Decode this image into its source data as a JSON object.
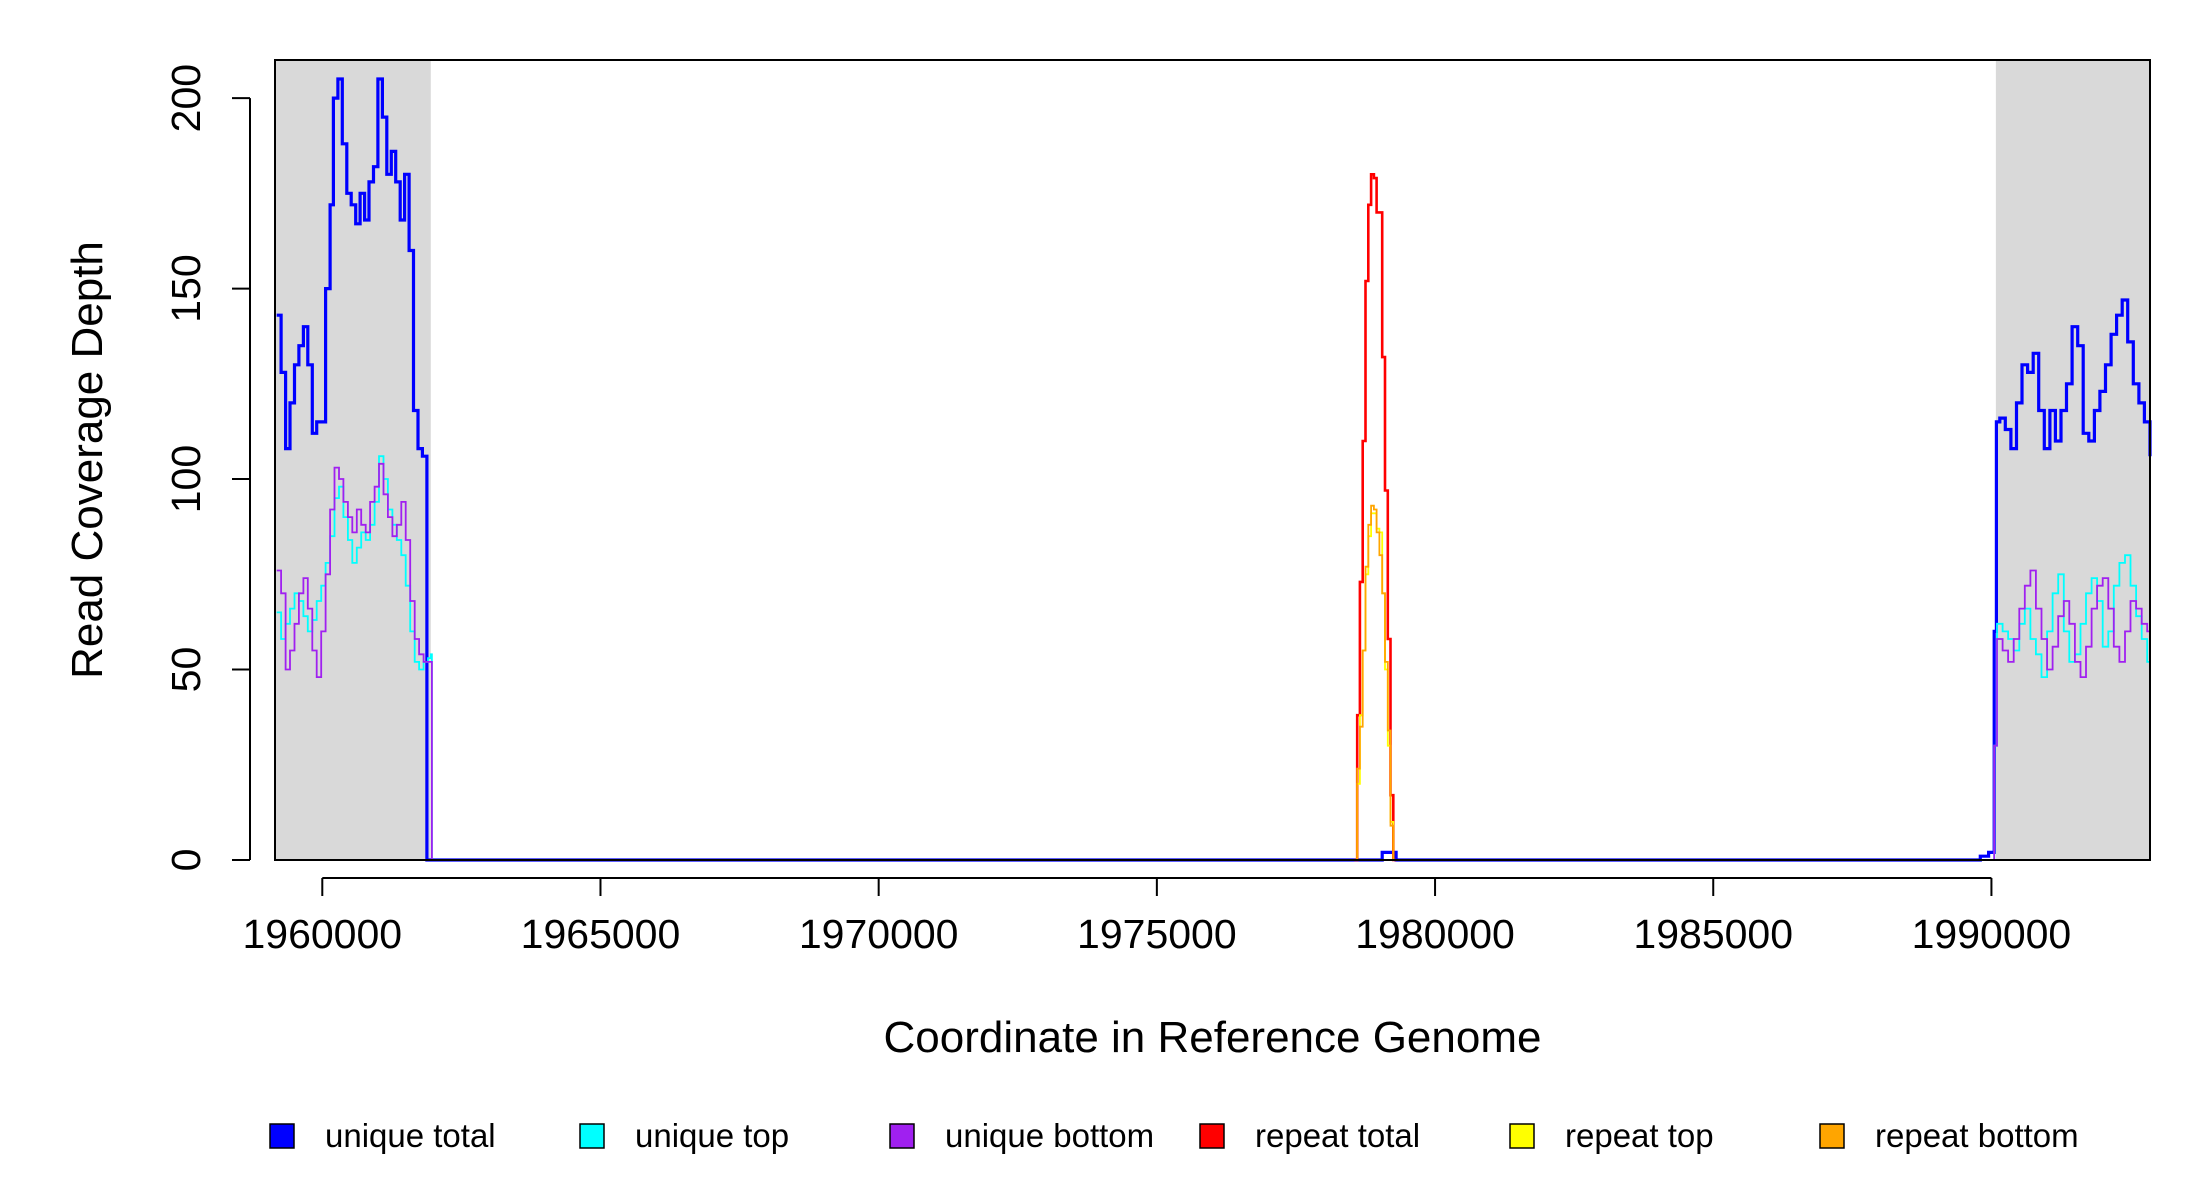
{
  "chart_data": {
    "type": "line",
    "xlabel": "Coordinate in Reference Genome",
    "ylabel": "Read Coverage Depth",
    "xlim": [
      1959150,
      1992850
    ],
    "ylim": [
      0,
      210
    ],
    "x_ticks": [
      {
        "value": 1960000,
        "label": "1960000"
      },
      {
        "value": 1965000,
        "label": "1965000"
      },
      {
        "value": 1970000,
        "label": "1970000"
      },
      {
        "value": 1975000,
        "label": "1975000"
      },
      {
        "value": 1980000,
        "label": "1980000"
      },
      {
        "value": 1985000,
        "label": "1985000"
      },
      {
        "value": 1990000,
        "label": "1990000"
      }
    ],
    "y_ticks": [
      {
        "value": 0,
        "label": "0"
      },
      {
        "value": 50,
        "label": "50"
      },
      {
        "value": 100,
        "label": "100"
      },
      {
        "value": 150,
        "label": "150"
      },
      {
        "value": 200,
        "label": "200"
      }
    ],
    "shaded_regions": [
      {
        "x": [
          1959150,
          1961950
        ],
        "color": "#d9d9d9"
      },
      {
        "x": [
          1990080,
          1992850
        ],
        "color": "#d9d9d9"
      }
    ],
    "grid": false,
    "legend_position": "bottom",
    "series": [
      {
        "name": "unique total",
        "color": "#0000ff",
        "x": [
          1959180,
          1959260,
          1959340,
          1959420,
          1959500,
          1959580,
          1959660,
          1959740,
          1959820,
          1959900,
          1959980,
          1960060,
          1960140,
          1960200,
          1960280,
          1960360,
          1960440,
          1960520,
          1960600,
          1960680,
          1960760,
          1960840,
          1960920,
          1961000,
          1961080,
          1961160,
          1961240,
          1961320,
          1961400,
          1961480,
          1961560,
          1961640,
          1961720,
          1961800,
          1961880,
          1961950,
          1961970,
          1979000,
          1979050,
          1979200,
          1979300,
          1989700,
          1989800,
          1989950,
          1990050,
          1990090,
          1990150,
          1990250,
          1990350,
          1990450,
          1990550,
          1990650,
          1990750,
          1990850,
          1990950,
          1991050,
          1991150,
          1991250,
          1991350,
          1991450,
          1991550,
          1991650,
          1991750,
          1991850,
          1991950,
          1992050,
          1992150,
          1992250,
          1992350,
          1992450,
          1992550,
          1992650,
          1992750,
          1992850
        ],
        "y": [
          143,
          128,
          108,
          120,
          130,
          135,
          140,
          130,
          112,
          115,
          115,
          150,
          172,
          200,
          205,
          188,
          175,
          172,
          167,
          175,
          168,
          178,
          182,
          205,
          195,
          180,
          186,
          178,
          168,
          180,
          160,
          118,
          108,
          106,
          0,
          0,
          0,
          0,
          2,
          2,
          0,
          0,
          1,
          2,
          60,
          115,
          116,
          113,
          108,
          120,
          130,
          128,
          133,
          118,
          108,
          118,
          110,
          118,
          125,
          140,
          135,
          112,
          110,
          118,
          123,
          130,
          138,
          143,
          147,
          136,
          125,
          120,
          115,
          106
        ]
      },
      {
        "name": "unique top",
        "color": "#00ffff",
        "x": [
          1959180,
          1959260,
          1959340,
          1959420,
          1959500,
          1959580,
          1959660,
          1959740,
          1959820,
          1959900,
          1959980,
          1960060,
          1960140,
          1960220,
          1960300,
          1960380,
          1960460,
          1960540,
          1960620,
          1960700,
          1960780,
          1960860,
          1960940,
          1961020,
          1961100,
          1961180,
          1961260,
          1961340,
          1961420,
          1961500,
          1961580,
          1961660,
          1961740,
          1961820,
          1961900,
          1961950,
          1961970,
          1989950,
          1990050,
          1990100,
          1990200,
          1990300,
          1990400,
          1990500,
          1990600,
          1990700,
          1990800,
          1990900,
          1991000,
          1991100,
          1991200,
          1991300,
          1991400,
          1991500,
          1991600,
          1991700,
          1991800,
          1991900,
          1992000,
          1992100,
          1992200,
          1992300,
          1992400,
          1992500,
          1992600,
          1992700,
          1992800,
          1992850
        ],
        "y": [
          65,
          58,
          62,
          66,
          70,
          68,
          64,
          60,
          63,
          68,
          72,
          78,
          85,
          95,
          98,
          90,
          84,
          78,
          82,
          86,
          84,
          88,
          94,
          106,
          100,
          92,
          88,
          84,
          80,
          72,
          60,
          52,
          50,
          52,
          53,
          54,
          0,
          0,
          30,
          62,
          60,
          58,
          55,
          62,
          66,
          58,
          54,
          48,
          60,
          70,
          75,
          60,
          52,
          54,
          62,
          70,
          74,
          68,
          56,
          60,
          72,
          78,
          80,
          72,
          64,
          58,
          52,
          50
        ]
      },
      {
        "name": "unique bottom",
        "color": "#a020f0",
        "x": [
          1959180,
          1959260,
          1959340,
          1959420,
          1959500,
          1959580,
          1959660,
          1959740,
          1959820,
          1959900,
          1959980,
          1960060,
          1960140,
          1960220,
          1960300,
          1960380,
          1960460,
          1960540,
          1960620,
          1960700,
          1960780,
          1960860,
          1960940,
          1961020,
          1961100,
          1961180,
          1961260,
          1961340,
          1961420,
          1961500,
          1961580,
          1961660,
          1961740,
          1961820,
          1961900,
          1961950,
          1961970,
          1989950,
          1990050,
          1990100,
          1990200,
          1990300,
          1990400,
          1990500,
          1990600,
          1990700,
          1990800,
          1990900,
          1991000,
          1991100,
          1991200,
          1991300,
          1991400,
          1991500,
          1991600,
          1991700,
          1991800,
          1991900,
          1992000,
          1992100,
          1992200,
          1992300,
          1992400,
          1992500,
          1992600,
          1992700,
          1992800,
          1992850
        ],
        "y": [
          76,
          70,
          50,
          55,
          62,
          70,
          74,
          66,
          55,
          48,
          60,
          75,
          92,
          103,
          100,
          94,
          90,
          86,
          92,
          88,
          86,
          94,
          98,
          104,
          96,
          90,
          85,
          88,
          94,
          84,
          68,
          58,
          54,
          52,
          52,
          52,
          0,
          0,
          30,
          58,
          55,
          52,
          58,
          66,
          72,
          76,
          66,
          58,
          50,
          56,
          64,
          68,
          62,
          52,
          48,
          56,
          66,
          72,
          74,
          66,
          56,
          52,
          60,
          68,
          66,
          62,
          60,
          58
        ]
      },
      {
        "name": "repeat total",
        "color": "#ff0000",
        "x": [
          1978550,
          1978600,
          1978650,
          1978700,
          1978750,
          1978800,
          1978850,
          1978900,
          1978950,
          1979000,
          1979050,
          1979100,
          1979150,
          1979200,
          1979250,
          1979300
        ],
        "y": [
          0,
          38,
          73,
          110,
          152,
          172,
          180,
          179,
          170,
          170,
          132,
          97,
          58,
          17,
          0,
          0
        ]
      },
      {
        "name": "repeat top",
        "color": "#ffff00",
        "x": [
          1978550,
          1978600,
          1978650,
          1978700,
          1978750,
          1978800,
          1978850,
          1978900,
          1978950,
          1979000,
          1979050,
          1979100,
          1979150,
          1979200,
          1979250,
          1979300
        ],
        "y": [
          0,
          20,
          38,
          55,
          75,
          85,
          91,
          91,
          87,
          86,
          70,
          50,
          30,
          10,
          0,
          0
        ]
      },
      {
        "name": "repeat bottom",
        "color": "#ffa500",
        "x": [
          1978550,
          1978600,
          1978650,
          1978700,
          1978750,
          1978800,
          1978850,
          1978900,
          1978950,
          1979000,
          1979050,
          1979100,
          1979150,
          1979200,
          1979250,
          1979300
        ],
        "y": [
          0,
          24,
          35,
          55,
          77,
          88,
          93,
          92,
          86,
          80,
          70,
          52,
          34,
          9,
          0,
          0
        ]
      }
    ]
  }
}
